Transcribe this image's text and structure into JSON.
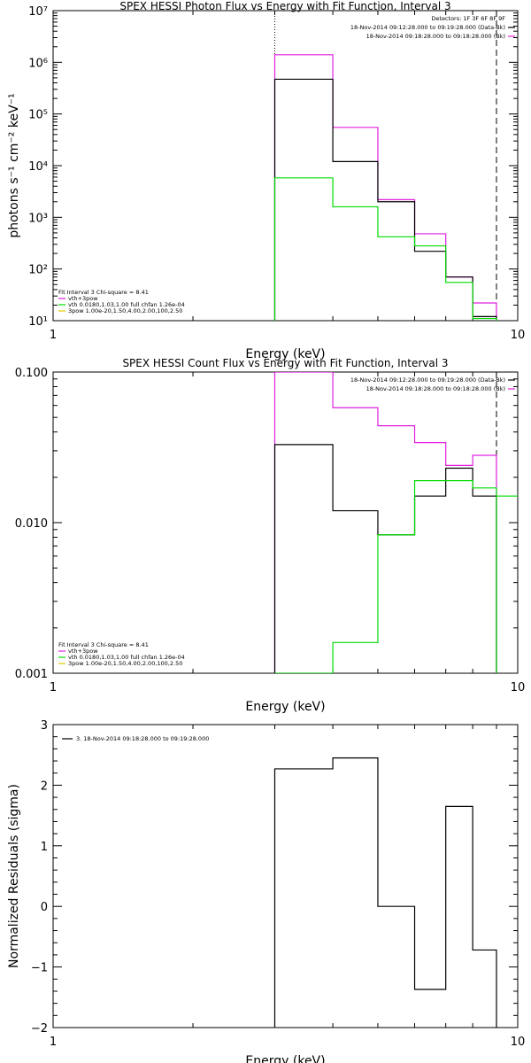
{
  "chart_data": [
    {
      "type": "line",
      "title": "SPEX HESSI Photon Flux vs Energy with Fit Function, Interval 3",
      "ylabel": "photons s⁻¹ cm⁻² keV⁻¹",
      "xlabel": "Energy (keV)",
      "x_scale": "log",
      "y_scale": "log",
      "xlim": [
        1,
        10
      ],
      "ylim": [
        10,
        10000000
      ],
      "x_ticks": [
        {
          "v": 1,
          "label": "1"
        },
        {
          "v": 10,
          "label": "10"
        }
      ],
      "y_ticks": [
        {
          "v": 10,
          "label": "10¹"
        },
        {
          "v": 100,
          "label": "10²"
        },
        {
          "v": 1000,
          "label": "10³"
        },
        {
          "v": 10000,
          "label": "10⁴"
        },
        {
          "v": 100000,
          "label": "10⁵"
        },
        {
          "v": 1000000,
          "label": "10⁶"
        },
        {
          "v": 10000000,
          "label": "10⁷"
        }
      ],
      "vlines": [
        {
          "x": 3.0,
          "style": "dotted"
        },
        {
          "x": 9.0,
          "style": "dashed"
        }
      ],
      "header": [
        "Detectors: 1F 3F 6F 8F 9F",
        "18-Nov-2014 09:12:28.000 to 09:19:28.000 (Data-Bk)",
        "18-Nov-2014 09:18:28.000 to 09:18:28.000 (Bk)"
      ],
      "header_colors": [
        "#000000",
        "#000000",
        "#e020e0"
      ],
      "legend": [
        "Fit Interval 3   Chi-square = 8.41",
        "vth+3pow",
        "vth 0.0180,1.03,1.00  full chfan 1.26e-04",
        "3pow 1.00e-20,1.50,4.00,2.00,100,2.50"
      ],
      "legend_colors": [
        "#000000",
        "#e020e0",
        "#00dd00",
        "#ddcc00"
      ],
      "edges": [
        3.0,
        4.0,
        5.0,
        6.0,
        7.0,
        8.0,
        9.0
      ],
      "series": [
        {
          "color": "#e020e0",
          "values": [
            1400000,
            55000,
            2200,
            480,
            70,
            22
          ]
        },
        {
          "color": "#000000",
          "values": [
            470000,
            12000,
            2000,
            220,
            70,
            12
          ]
        },
        {
          "color": "#00dd00",
          "values": [
            5800,
            1600,
            420,
            280,
            55,
            11
          ]
        }
      ]
    },
    {
      "type": "line",
      "title": "SPEX HESSI Count Flux vs Energy with Fit Function, Interval 3",
      "xlabel": "Energy (keV)",
      "x_scale": "log",
      "y_scale": "log",
      "xlim": [
        1,
        10
      ],
      "ylim": [
        0.001,
        0.1
      ],
      "x_ticks": [
        {
          "v": 1,
          "label": "1"
        },
        {
          "v": 10,
          "label": "10"
        }
      ],
      "y_ticks": [
        {
          "v": 0.001,
          "label": "0.001"
        },
        {
          "v": 0.01,
          "label": "0.010"
        },
        {
          "v": 0.1,
          "label": "0.100"
        }
      ],
      "vlines": [
        {
          "x": 3.0,
          "style": "dotted"
        },
        {
          "x": 9.0,
          "style": "dashed"
        }
      ],
      "header": [
        "18-Nov-2014 09:12:28.000 to 09:19:28.000 (Data-Bk)",
        "18-Nov-2014 09:18:28.000 to 09:18:28.000 (Bk)"
      ],
      "header_colors": [
        "#000000",
        "#e020e0"
      ],
      "legend": [
        "Fit Interval 3   Chi-square = 8.41",
        "vth+3pow",
        "vth 0.0180,1.03,1.00  full chfan 1.26e-04",
        "3pow 1.00e-20,1.50,4.00,2.00,100,2.50"
      ],
      "legend_colors": [
        "#000000",
        "#e020e0",
        "#00dd00",
        "#ddcc00"
      ],
      "edges": [
        3.0,
        4.0,
        5.0,
        6.0,
        7.0,
        8.0,
        9.0
      ],
      "series": [
        {
          "color": "#e020e0",
          "values": [
            0.1,
            0.058,
            0.044,
            0.034,
            0.024,
            0.028
          ]
        },
        {
          "color": "#000000",
          "values": [
            0.033,
            0.012,
            0.0083,
            0.015,
            0.023,
            0.015
          ]
        },
        {
          "color": "#00dd00",
          "values": [
            0.0006,
            0.0016,
            0.0083,
            0.019,
            0.019,
            0.017
          ]
        }
      ],
      "extra_step": {
        "color": "#00dd00",
        "x": [
          9.0,
          10.5
        ],
        "value": 0.015
      }
    },
    {
      "type": "line",
      "ylabel": "Normalized Residuals (sigma)",
      "xlabel": "Energy (keV)",
      "x_scale": "log",
      "y_scale": "linear",
      "xlim": [
        1,
        10
      ],
      "ylim": [
        -2,
        3
      ],
      "x_ticks": [
        {
          "v": 1,
          "label": "1"
        },
        {
          "v": 10,
          "label": "10"
        }
      ],
      "y_ticks": [
        {
          "v": -2,
          "label": "−2"
        },
        {
          "v": -1,
          "label": "−1"
        },
        {
          "v": 0,
          "label": "0"
        },
        {
          "v": 1,
          "label": "1"
        },
        {
          "v": 2,
          "label": "2"
        },
        {
          "v": 3,
          "label": "3"
        }
      ],
      "legend": [
        "3. 18-Nov-2014 09:18:28.000 to 09:19:28.000"
      ],
      "legend_colors": [
        "#000000"
      ],
      "edges": [
        3.0,
        4.0,
        5.0,
        6.0,
        7.0,
        8.0,
        9.0
      ],
      "series": [
        {
          "color": "#000000",
          "values": [
            2.27,
            2.45,
            0.0,
            -1.37,
            1.65,
            -0.72
          ]
        }
      ]
    }
  ]
}
